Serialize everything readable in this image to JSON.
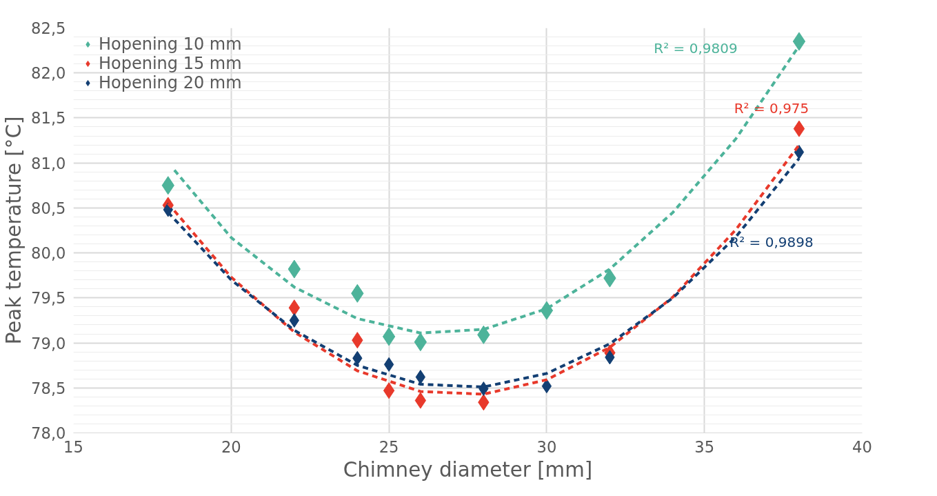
{
  "chart_data": {
    "type": "scatter",
    "xlabel": "Chimney diameter [mm]",
    "ylabel": "Peak temperature [°C]",
    "xlim": [
      15,
      40
    ],
    "xticks": [
      15,
      20,
      25,
      30,
      35,
      40
    ],
    "ylim": [
      78.0,
      82.5
    ],
    "yticks": [
      {
        "value": 78.0,
        "label": "78,0"
      },
      {
        "value": 78.5,
        "label": "78,5"
      },
      {
        "value": 79.0,
        "label": "79,0"
      },
      {
        "value": 79.5,
        "label": "79,5"
      },
      {
        "value": 80.0,
        "label": "80,0"
      },
      {
        "value": 80.5,
        "label": "80,5"
      },
      {
        "value": 81.0,
        "label": "81,0"
      },
      {
        "value": 81.5,
        "label": "81,5"
      },
      {
        "value": 82.0,
        "label": "82,0"
      },
      {
        "value": 82.5,
        "label": "82,5"
      }
    ],
    "grid": true,
    "legend": "top left",
    "marker": "diamond",
    "x": [
      18,
      22,
      24,
      25,
      26,
      28,
      30,
      32,
      38
    ],
    "series": [
      {
        "name": "Hopening 10 mm",
        "color": "#4db39a",
        "values": [
          80.75,
          79.82,
          79.55,
          79.07,
          79.01,
          79.09,
          79.36,
          79.72,
          82.35
        ]
      },
      {
        "name": "Hopening 15 mm",
        "color": "#e8392b",
        "values": [
          80.53,
          79.39,
          79.03,
          78.47,
          78.36,
          78.34,
          null,
          78.89,
          81.38
        ]
      },
      {
        "name": "Hopening 20 mm",
        "color": "#133f73",
        "values": [
          80.48,
          79.25,
          78.83,
          78.76,
          78.62,
          78.49,
          78.52,
          78.84,
          81.12
        ]
      },
      {
        "type": "line",
        "line_style": "dashed",
        "marker": "none",
        "color": "#4db39a",
        "x": [
          18.2,
          20,
          22,
          24,
          26,
          28,
          30,
          32,
          34,
          36,
          38
        ],
        "values": [
          80.92,
          80.17,
          79.62,
          79.27,
          79.11,
          79.15,
          79.38,
          79.82,
          80.45,
          81.27,
          82.3
        ]
      },
      {
        "type": "line",
        "line_style": "dashed",
        "marker": "none",
        "color": "#e8392b",
        "x": [
          18,
          20,
          22,
          24,
          26,
          28,
          30,
          32,
          34,
          36,
          38
        ],
        "values": [
          80.55,
          79.73,
          79.12,
          78.69,
          78.46,
          78.43,
          78.59,
          78.95,
          79.51,
          80.26,
          81.2
        ]
      },
      {
        "type": "line",
        "line_style": "dashed",
        "marker": "none",
        "color": "#133f73",
        "x": [
          18,
          20,
          22,
          24,
          26,
          28,
          30,
          32,
          34,
          36,
          38
        ],
        "values": [
          80.45,
          79.7,
          79.14,
          78.75,
          78.54,
          78.51,
          78.66,
          78.99,
          79.5,
          80.18,
          81.05
        ]
      }
    ],
    "annotations": [
      "R² = 0,9809",
      "R² = 0,975",
      "R² = 0,9898"
    ]
  }
}
